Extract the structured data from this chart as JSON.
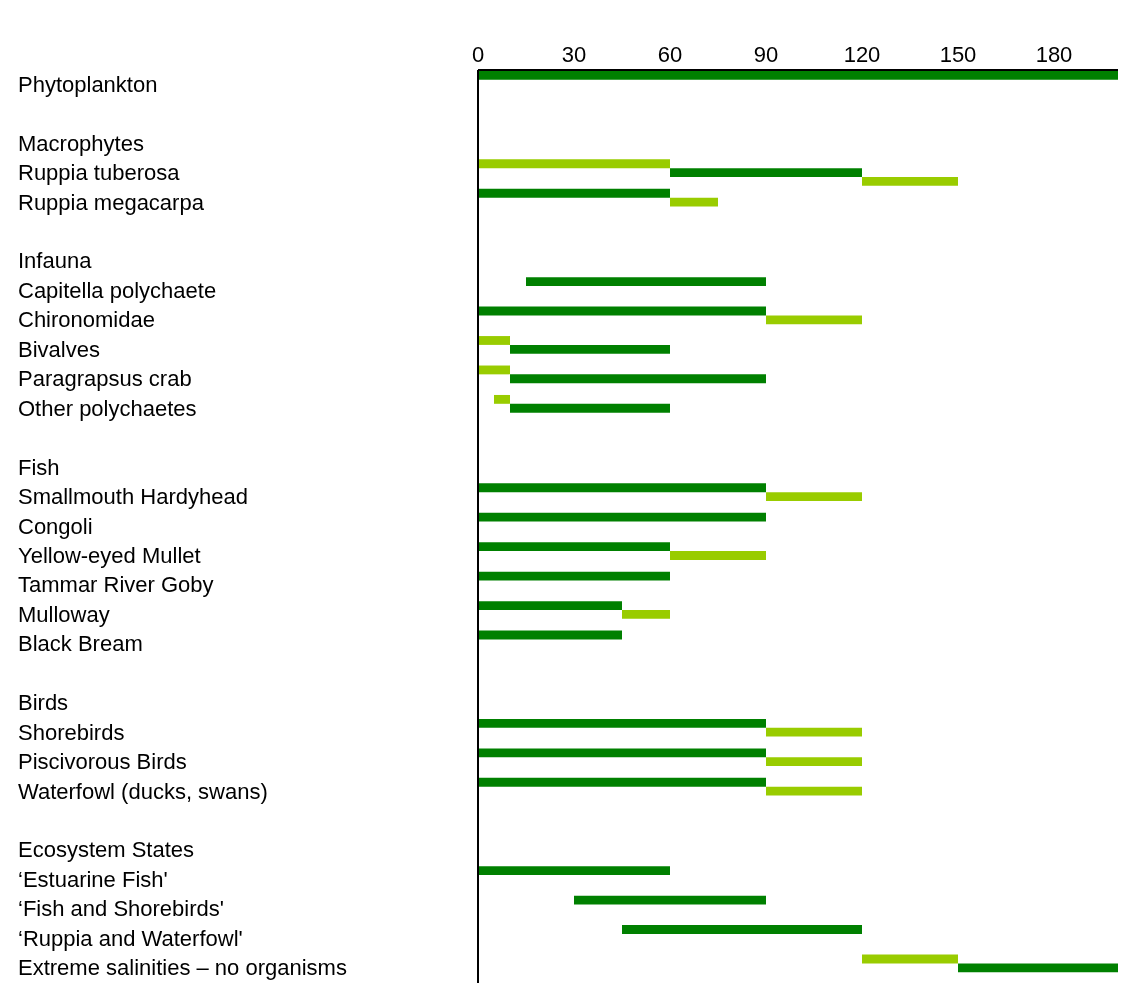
{
  "chart_data": {
    "type": "bar",
    "orientation": "horizontal",
    "categories": [
      "Phytoplankton",
      null,
      "Macrophytes",
      "Ruppia tuberosa",
      "Ruppia megacarpa",
      null,
      "Infauna",
      "Capitella polychaete",
      "Chironomidae",
      "Bivalves",
      "Paragrapsus crab",
      "Other polychaetes",
      null,
      "Fish",
      "Smallmouth Hardyhead",
      "Congoli",
      "Yellow-eyed Mullet",
      "Tammar River Goby",
      "Mulloway",
      "Black Bream",
      null,
      "Birds",
      "Shorebirds",
      "Piscivorous Birds",
      "Waterfowl (ducks, swans)",
      null,
      "Ecosystem States",
      "‘Estuarine Fish'",
      "‘Fish and Shorebirds'",
      "‘Ruppia and Waterfowl'",
      "Extreme salinities – no organisms"
    ],
    "series": [
      {
        "base": [
          0,
          null,
          null,
          0,
          0,
          null,
          null,
          15,
          0,
          0,
          0,
          5,
          null,
          null,
          0,
          0,
          0,
          0,
          0,
          0,
          null,
          null,
          0,
          0,
          0,
          null,
          null,
          0,
          30,
          45,
          120
        ],
        "values": [
          200,
          null,
          null,
          60,
          60,
          null,
          null,
          75,
          90,
          10,
          10,
          5,
          null,
          null,
          90,
          90,
          60,
          60,
          45,
          45,
          null,
          null,
          90,
          90,
          90,
          null,
          null,
          60,
          60,
          75,
          30
        ],
        "colors": [
          "#008000",
          null,
          null,
          "#99cc00",
          "#008000",
          null,
          null,
          "#008000",
          "#008000",
          "#99cc00",
          "#99cc00",
          "#99cc00",
          null,
          null,
          "#008000",
          "#008000",
          "#008000",
          "#008000",
          "#008000",
          "#008000",
          null,
          null,
          "#008000",
          "#008000",
          "#008000",
          null,
          null,
          "#008000",
          "#008000",
          "#008000",
          "#99cc00"
        ]
      },
      {
        "base": [
          null,
          null,
          null,
          60,
          60,
          null,
          null,
          null,
          90,
          10,
          10,
          10,
          null,
          null,
          90,
          null,
          60,
          null,
          45,
          null,
          null,
          null,
          90,
          90,
          90,
          null,
          null,
          null,
          null,
          null,
          150
        ],
        "values": [
          null,
          null,
          null,
          60,
          15,
          null,
          null,
          null,
          30,
          50,
          80,
          50,
          null,
          null,
          30,
          null,
          30,
          null,
          15,
          null,
          null,
          null,
          30,
          30,
          30,
          null,
          null,
          null,
          null,
          null,
          50
        ],
        "colors": [
          null,
          null,
          null,
          "#008000",
          "#99cc00",
          null,
          null,
          null,
          "#99cc00",
          "#008000",
          "#008000",
          "#008000",
          null,
          null,
          "#99cc00",
          null,
          "#99cc00",
          null,
          "#99cc00",
          null,
          null,
          null,
          "#99cc00",
          "#99cc00",
          "#99cc00",
          null,
          null,
          null,
          null,
          null,
          "#008000"
        ]
      },
      {
        "base": [
          null,
          null,
          null,
          120,
          null,
          null,
          null,
          null,
          null,
          null,
          null,
          null,
          null,
          null,
          null,
          null,
          null,
          null,
          null,
          null,
          null,
          null,
          null,
          null,
          null,
          null,
          null,
          null,
          null,
          null,
          null
        ],
        "values": [
          null,
          null,
          null,
          30,
          null,
          null,
          null,
          null,
          null,
          null,
          null,
          null,
          null,
          null,
          null,
          null,
          null,
          null,
          null,
          null,
          null,
          null,
          null,
          null,
          null,
          null,
          null,
          null,
          null,
          null,
          null
        ],
        "colors": [
          null,
          null,
          null,
          "#99cc00",
          null,
          null,
          null,
          null,
          null,
          null,
          null,
          null,
          null,
          null,
          null,
          null,
          null,
          null,
          null,
          null,
          null,
          null,
          null,
          null,
          null,
          null,
          null,
          null,
          null,
          null,
          null
        ]
      }
    ],
    "xlim": [
      0,
      200
    ],
    "xticks": [
      0,
      30,
      60,
      90,
      120,
      150,
      180
    ],
    "grid": false,
    "legend": false
  }
}
